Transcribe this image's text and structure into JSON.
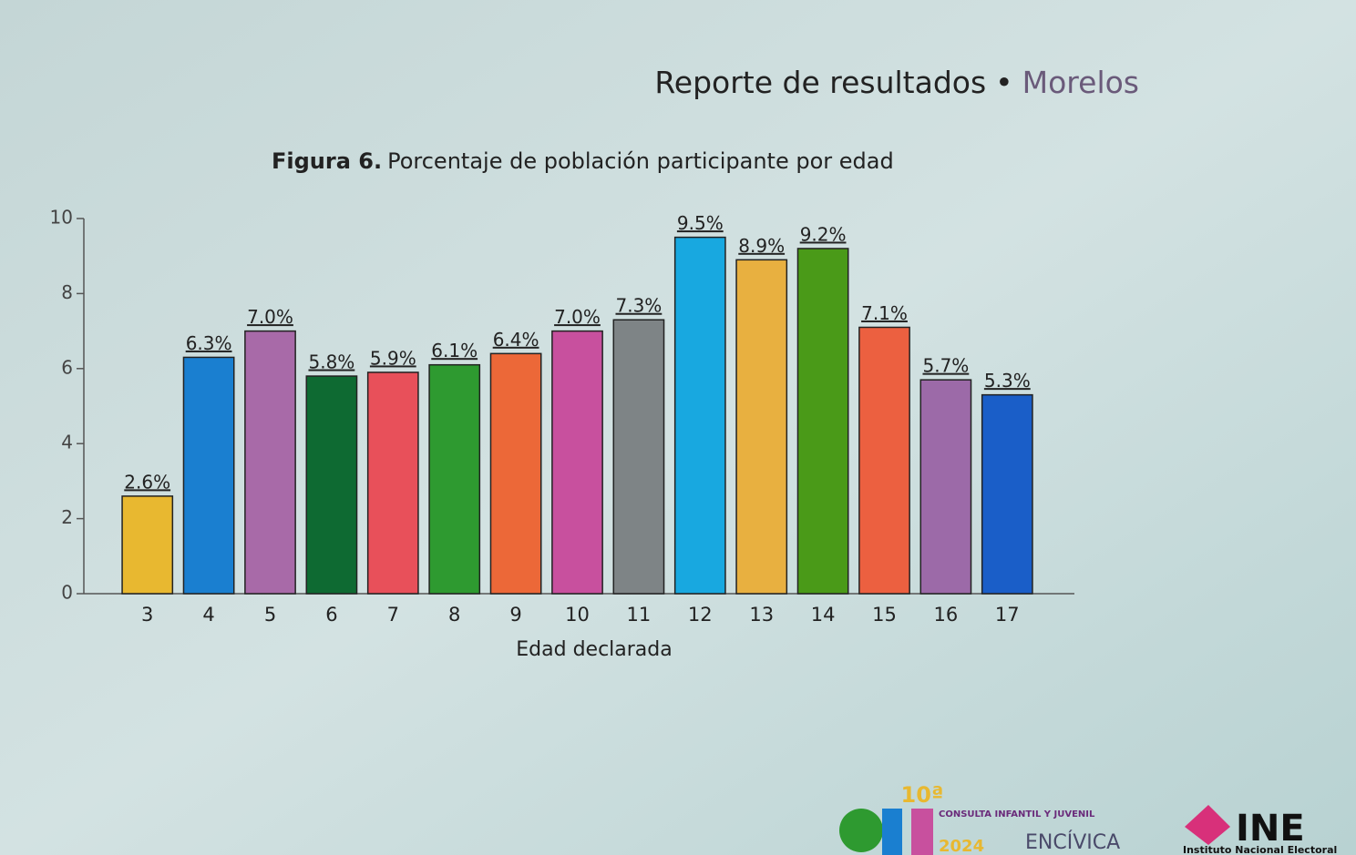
{
  "header": {
    "title": "Reporte de resultados",
    "separator": "•",
    "subtitle": "Morelos"
  },
  "chart_data": {
    "type": "bar",
    "title_prefix": "Figura 6.",
    "title": "Porcentaje de población participante por edad",
    "x_label": "Edad declarada",
    "categories": [
      "3",
      "4",
      "5",
      "6",
      "7",
      "8",
      "9",
      "10",
      "11",
      "12",
      "13",
      "14",
      "15",
      "16",
      "17"
    ],
    "values": [
      2.6,
      6.3,
      7.0,
      5.8,
      5.9,
      6.1,
      6.4,
      7.0,
      7.3,
      9.5,
      8.9,
      9.2,
      7.1,
      5.7,
      5.3
    ],
    "value_labels": [
      "2.6%",
      "6.3%",
      "7.0%",
      "5.8%",
      "5.9%",
      "6.1%",
      "6.4%",
      "7.0%",
      "7.3%",
      "9.5%",
      "8.9%",
      "9.2%",
      "7.1%",
      "5.7%",
      "5.3%"
    ],
    "colors": [
      "#e8b830",
      "#1a7fd0",
      "#a86aa8",
      "#0e6a32",
      "#e8505a",
      "#2e9a30",
      "#ec6838",
      "#c8509e",
      "#7e8486",
      "#18a8e0",
      "#e8b040",
      "#4a9a18",
      "#ec6040",
      "#9c6aa8",
      "#1a5ec8"
    ],
    "ylim": [
      0,
      10
    ],
    "yticks": [
      0,
      2,
      4,
      6,
      8,
      10
    ]
  },
  "footer": {
    "cij_edition": "10ª",
    "cij_name": "CONSULTA INFANTIL Y JUVENIL",
    "cij_year": "2024",
    "encivica": "ENCÍVICA",
    "ine": "INE",
    "ine_name": "Instituto Nacional Electoral"
  }
}
